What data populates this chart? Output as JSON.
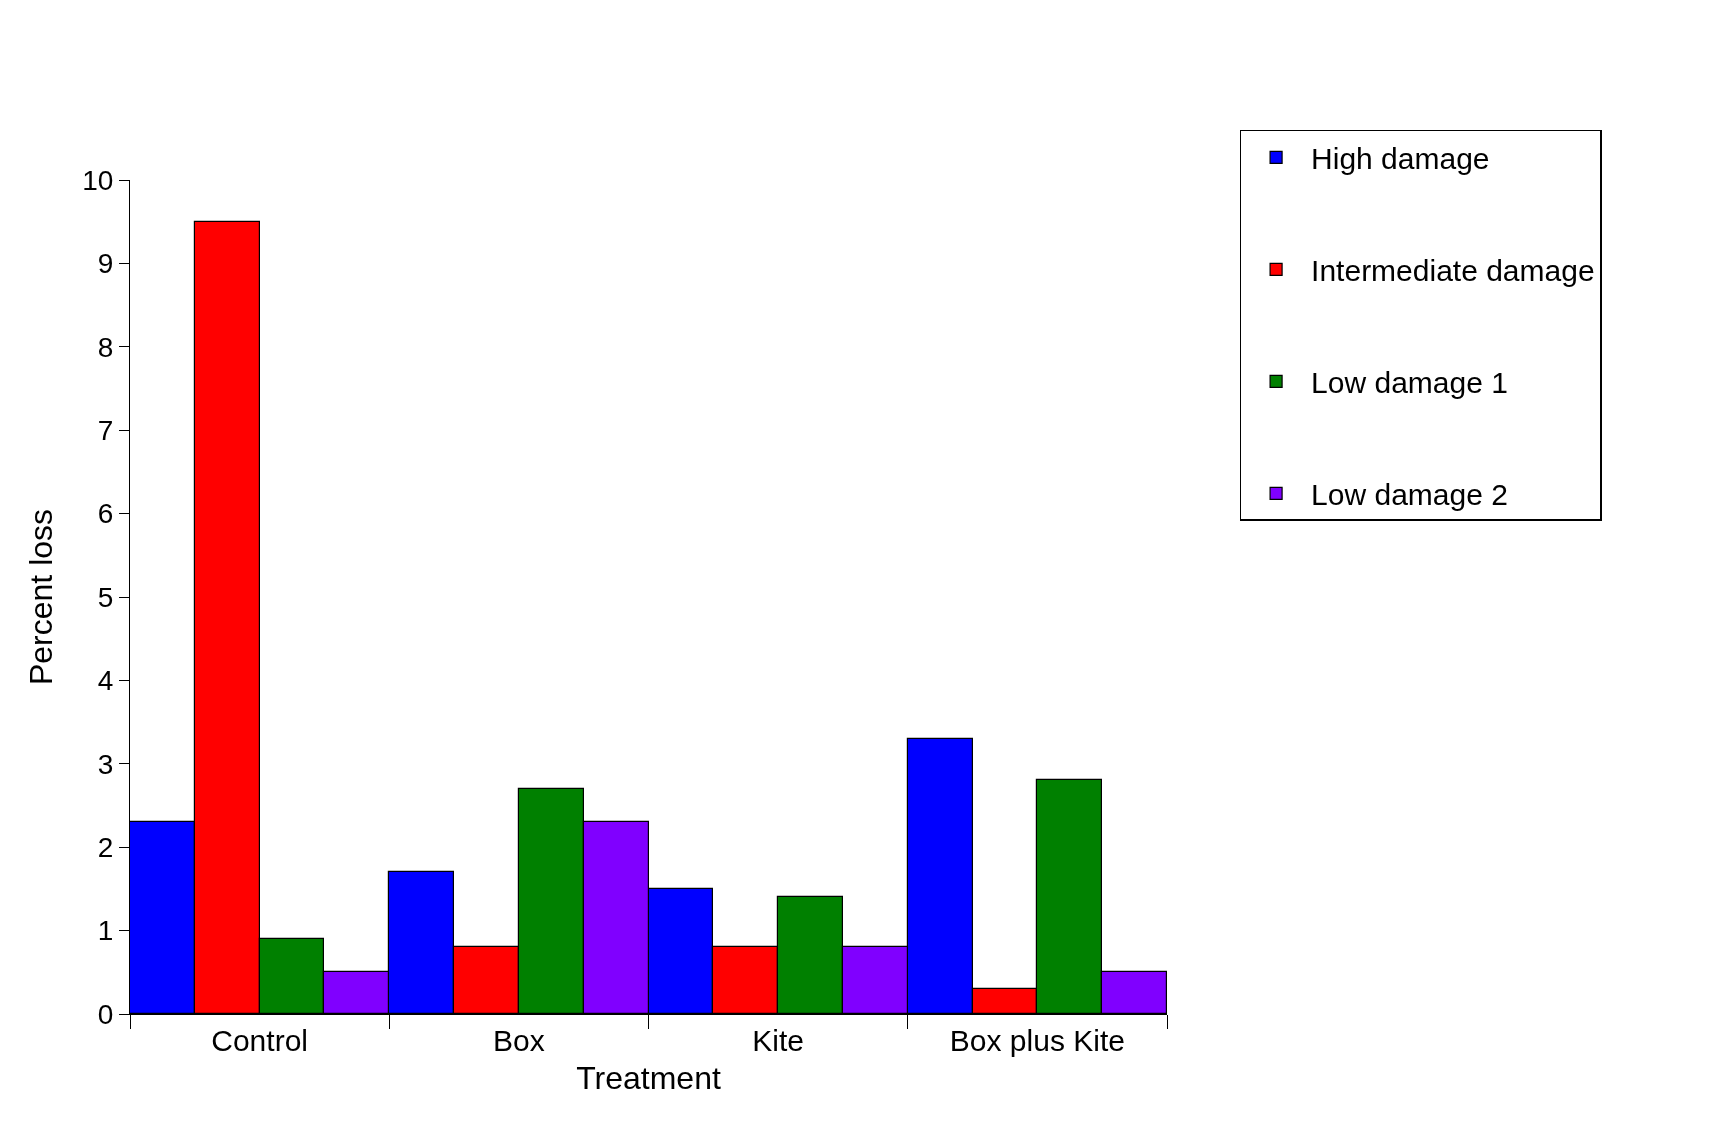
{
  "chart_data": {
    "type": "bar",
    "xlabel": "Treatment",
    "ylabel": "Percent loss",
    "categories": [
      "Control",
      "Box",
      "Kite",
      "Box plus Kite"
    ],
    "series": [
      {
        "name": "High damage",
        "color": "#0000ff",
        "values": [
          2.3,
          1.7,
          1.5,
          3.3
        ]
      },
      {
        "name": "Intermediate damage",
        "color": "#ff0000",
        "values": [
          9.5,
          0.8,
          0.8,
          0.3
        ]
      },
      {
        "name": "Low damage 1",
        "color": "#008000",
        "values": [
          0.9,
          2.7,
          1.4,
          2.8
        ]
      },
      {
        "name": "Low damage 2",
        "color": "#8000ff",
        "values": [
          0.5,
          2.3,
          0.8,
          0.5
        ]
      }
    ],
    "ylim": [
      0,
      10
    ],
    "yticks": [
      0,
      1,
      2,
      3,
      4,
      5,
      6,
      7,
      8,
      9,
      10
    ],
    "grid": false,
    "legend": "top right"
  }
}
